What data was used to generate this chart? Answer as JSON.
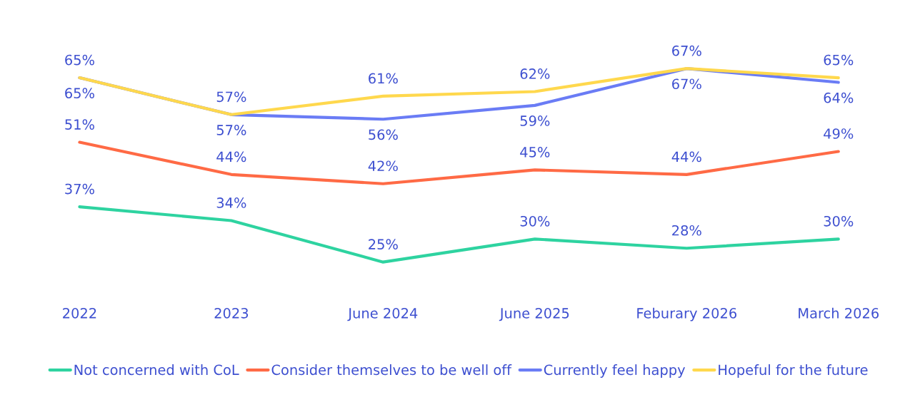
{
  "chart_data": {
    "type": "line",
    "categories": [
      "2022",
      "2023",
      "June 2024",
      "June 2025",
      "Feburary 2026",
      "March 2026"
    ],
    "series": [
      {
        "name": "Not concerned with CoL",
        "color": "#2ed3a0",
        "values": [
          37,
          34,
          25,
          30,
          28,
          30
        ],
        "value_labels": [
          "37%",
          "34%",
          "25%",
          "30%",
          "28%",
          "30%"
        ]
      },
      {
        "name": "Consider themselves to be well off",
        "color": "#ff6a45",
        "values": [
          51,
          44,
          42,
          45,
          44,
          49
        ],
        "value_labels": [
          "51%",
          "44%",
          "42%",
          "45%",
          "44%",
          "49%"
        ]
      },
      {
        "name": "Currently feel happy",
        "color": "#6a7cf5",
        "values": [
          65,
          57,
          56,
          59,
          67,
          64
        ],
        "value_labels": [
          "65%",
          "57%",
          "56%",
          "59%",
          "67%",
          "64%"
        ]
      },
      {
        "name": "Hopeful for the future",
        "color": "#ffd84d",
        "values": [
          65,
          57,
          61,
          62,
          67,
          65
        ],
        "value_labels": [
          "65%",
          "57%",
          "61%",
          "62%",
          "67%",
          "65%"
        ]
      }
    ],
    "legend": "bottom",
    "grid": false,
    "marker": "none",
    "line_style": "solid"
  }
}
